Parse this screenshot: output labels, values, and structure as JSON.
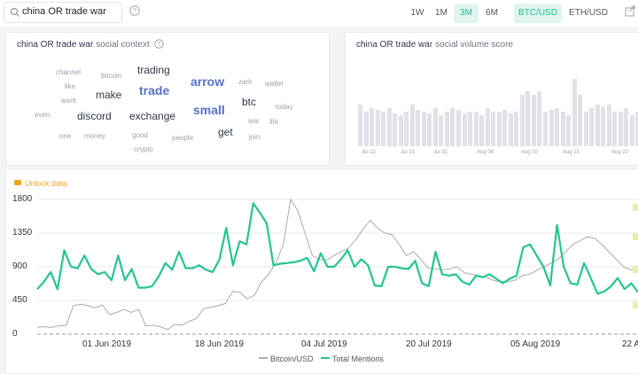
{
  "search": {
    "value": "china OR trade war"
  },
  "timeframes": [
    "1W",
    "1M",
    "3M",
    "6M"
  ],
  "active_timeframe": "3M",
  "pairs": [
    "BTC/USD",
    "ETH/USD"
  ],
  "active_pair": "BTC/USD",
  "social_context": {
    "query": "china OR trade war",
    "subtitle": "social context",
    "words": [
      {
        "text": "channel",
        "size": "small"
      },
      {
        "text": "bitcoin",
        "size": "small"
      },
      {
        "text": "trading",
        "size": "medium"
      },
      {
        "text": "like",
        "size": "small"
      },
      {
        "text": "trade",
        "size": "large",
        "accent": true
      },
      {
        "text": "arrow",
        "size": "large",
        "accent": true
      },
      {
        "text": "zarh",
        "size": "small"
      },
      {
        "text": "wallet",
        "size": "small"
      },
      {
        "text": "want",
        "size": "small"
      },
      {
        "text": "make",
        "size": "medium"
      },
      {
        "text": "btc",
        "size": "medium"
      },
      {
        "text": "small",
        "size": "large",
        "accent": true
      },
      {
        "text": "today",
        "size": "small"
      },
      {
        "text": "even",
        "size": "small"
      },
      {
        "text": "discord",
        "size": "medium"
      },
      {
        "text": "exchange",
        "size": "medium"
      },
      {
        "text": "war",
        "size": "small"
      },
      {
        "text": "life",
        "size": "small"
      },
      {
        "text": "get",
        "size": "medium"
      },
      {
        "text": "one",
        "size": "small"
      },
      {
        "text": "money",
        "size": "small"
      },
      {
        "text": "good",
        "size": "small"
      },
      {
        "text": "people",
        "size": "small"
      },
      {
        "text": "join",
        "size": "small"
      },
      {
        "text": "crypto",
        "size": "small"
      }
    ]
  },
  "social_volume": {
    "query": "china OR trade war",
    "subtitle": "social volume score",
    "bars": [
      0.6,
      0.5,
      0.55,
      0.52,
      0.5,
      0.55,
      0.48,
      0.45,
      0.5,
      0.6,
      0.52,
      0.5,
      0.48,
      0.55,
      0.45,
      0.5,
      0.55,
      0.52,
      0.48,
      0.5,
      0.5,
      0.45,
      0.55,
      0.5,
      0.5,
      0.52,
      0.48,
      0.5,
      0.75,
      0.8,
      0.75,
      0.8,
      0.5,
      0.52,
      0.55,
      0.5,
      0.45,
      0.98,
      0.75,
      0.5,
      0.55,
      0.6,
      0.58,
      0.6,
      0.5,
      0.5,
      0.55,
      0.45,
      0.5
    ],
    "dates": [
      "Jul 22",
      "Jul 21",
      "Jul 31",
      "Aug 06",
      "Aug 10",
      "Aug 15",
      "Aug 22"
    ]
  },
  "unlock_label": "Unlock data",
  "chart_data": {
    "type": "line",
    "y_ticks": [
      "1800",
      "1350",
      "900",
      "450",
      "0"
    ],
    "x_ticks": [
      "01 Jun 2019",
      "18 Jun 2019",
      "04 Jul 2019",
      "20 Jul 2019",
      "05 Aug 2019",
      "22 A"
    ],
    "ylim": [
      0,
      1800
    ],
    "grid": true,
    "legend_position": "bottom-center",
    "series": [
      {
        "name": "Bitcoin/USD",
        "color": "#aaaaaa",
        "values": [
          90,
          100,
          90,
          110,
          120,
          380,
          400,
          380,
          350,
          390,
          260,
          290,
          330,
          290,
          330,
          110,
          120,
          100,
          60,
          130,
          120,
          170,
          210,
          340,
          360,
          380,
          410,
          570,
          560,
          470,
          520,
          700,
          800,
          960,
          1200,
          1800,
          1650,
          1350,
          1050,
          1000,
          990,
          1050,
          1100,
          1150,
          1260,
          1400,
          1520,
          1420,
          1350,
          1330,
          1200,
          1050,
          1100,
          1000,
          880,
          870,
          860,
          870,
          900,
          820,
          800,
          780,
          760,
          720,
          700,
          700,
          720,
          780,
          800,
          850,
          900,
          950,
          1000,
          1100,
          1200,
          1250,
          1300,
          1280,
          1200,
          1100,
          1000,
          900,
          860,
          840
        ]
      },
      {
        "name": "Total Mentions",
        "color": "#26c493",
        "values": [
          600,
          700,
          830,
          600,
          1120,
          900,
          880,
          1050,
          870,
          800,
          830,
          720,
          1050,
          720,
          870,
          620,
          620,
          640,
          770,
          950,
          860,
          1100,
          880,
          880,
          920,
          860,
          830,
          1000,
          1420,
          920,
          1240,
          1200,
          1750,
          1620,
          1480,
          920,
          940,
          950,
          960,
          980,
          1020,
          840,
          1080,
          900,
          900,
          1000,
          1120,
          900,
          1000,
          920,
          650,
          640,
          900,
          900,
          880,
          870,
          980,
          680,
          640,
          1100,
          800,
          780,
          800,
          700,
          660,
          780,
          760,
          800,
          740,
          680,
          740,
          780,
          1160,
          1200,
          1050,
          900,
          650,
          1460,
          900,
          680,
          660,
          950,
          750,
          540,
          570,
          640,
          750,
          600,
          680,
          560
        ]
      }
    ]
  }
}
